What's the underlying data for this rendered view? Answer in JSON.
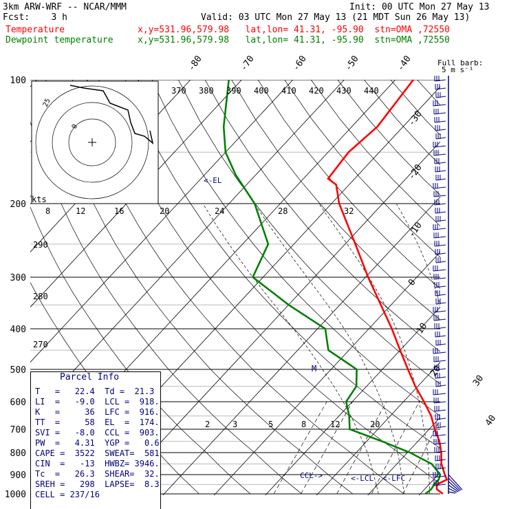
{
  "header": {
    "model": "3km ARW-WRF -- NCAR/MMM",
    "init": "Init: 00 UTC Mon 27 May 13",
    "fcst": "Fcst:    3 h",
    "valid": "Valid: 03 UTC Mon 27 May 13 (21 MDT Sun 26 May 13)",
    "temp_label": "Temperature",
    "dew_label": "Dewpoint temperature",
    "loc_text": "x,y=531.96,579.98   lat,lon= 41.31, -95.90  stn=OMA ,72550",
    "colors": {
      "temperature": "#ff0000",
      "dewpoint": "#008000",
      "text": "#000080"
    }
  },
  "barb_label_1": "Full barb:",
  "barb_label_2": "5 m s⁻¹",
  "kts_label": "kts",
  "el_marker": "<-EL",
  "ccl_marker": "CCL->",
  "lcl_marker": "<-LCL",
  "lfc_marker": "<-LFC",
  "pressure_labels": [
    "100",
    "200",
    "300",
    "400",
    "500",
    "600",
    "700",
    "800",
    "900",
    "1000"
  ],
  "isotherm_labels": [
    "-80",
    "-70",
    "-60",
    "-50",
    "-40",
    "-30",
    "-20",
    "-10",
    "0",
    "10",
    "20",
    "30",
    "40"
  ],
  "theta_labels": [
    "370",
    "380",
    "390",
    "400",
    "410",
    "420",
    "430",
    "440"
  ],
  "hodo_speed_labels": [
    "8",
    "12",
    "16",
    "20",
    "24",
    "28",
    "32"
  ],
  "mixing_ratio_labels": [
    "2",
    "3",
    "5",
    "8",
    "12",
    "20"
  ],
  "dry_adiabat_labels": [
    "290",
    "280",
    "270"
  ],
  "parcel_info": {
    "title": "Parcel Info",
    "rows": [
      "T   =   22.4  Td =  21.3",
      "LI  =   -9.0  LCL =  918.",
      "K   =     36  LFC =  916.",
      "TT  =     58  EL  =  174.",
      "SVI =   -8.0  CCL =  903.",
      "PW  =   4.31  YGP =   0.6",
      "CAPE =  3522  SWEAT=  581",
      "CIN  =   -13  HWBZ= 3946.",
      "Tc  =   26.3  SHEAR=  32.",
      "SREH =   298  LAPSE=  8.3",
      "CELL = 237/16"
    ]
  },
  "chart_data": {
    "type": "line",
    "title": "",
    "xlabel": "",
    "ylabel": "",
    "ylim": [
      1000,
      100
    ],
    "xlim": [
      -40,
      40
    ],
    "series": [
      {
        "name": "Temperature",
        "points": [
          [
            1000,
            24.4
          ],
          [
            975,
            22.4
          ],
          [
            950,
            21.5
          ],
          [
            925,
            22.6
          ],
          [
            900,
            21.3
          ],
          [
            850,
            18.7
          ],
          [
            800,
            16.6
          ],
          [
            750,
            14.2
          ],
          [
            700,
            11.1
          ],
          [
            650,
            8.0
          ],
          [
            600,
            4.0
          ],
          [
            550,
            -0.5
          ],
          [
            500,
            -5.0
          ],
          [
            450,
            -10.0
          ],
          [
            400,
            -15.5
          ],
          [
            350,
            -22.0
          ],
          [
            300,
            -29.5
          ],
          [
            250,
            -38.0
          ],
          [
            200,
            -48.5
          ],
          [
            180,
            -52.5
          ],
          [
            174,
            -55.2
          ],
          [
            150,
            -56.0
          ],
          [
            130,
            -55.0
          ],
          [
            100,
            -56.5
          ]
        ]
      },
      {
        "name": "Dewpoint temperature",
        "points": [
          [
            1000,
            21.0
          ],
          [
            975,
            21.3
          ],
          [
            950,
            21.0
          ],
          [
            925,
            21.0
          ],
          [
            900,
            20.4
          ],
          [
            850,
            16.8
          ],
          [
            800,
            10.5
          ],
          [
            750,
            3.0
          ],
          [
            700,
            -5.5
          ],
          [
            650,
            -8.0
          ],
          [
            600,
            -11.2
          ],
          [
            550,
            -12.0
          ],
          [
            500,
            -15.0
          ],
          [
            450,
            -24.0
          ],
          [
            400,
            -28.5
          ],
          [
            350,
            -40.0
          ],
          [
            300,
            -52.0
          ],
          [
            250,
            -55.0
          ],
          [
            200,
            -65.0
          ],
          [
            170,
            -74.0
          ],
          [
            150,
            -80.0
          ],
          [
            130,
            -85.0
          ],
          [
            100,
            -92.5
          ]
        ]
      }
    ]
  }
}
